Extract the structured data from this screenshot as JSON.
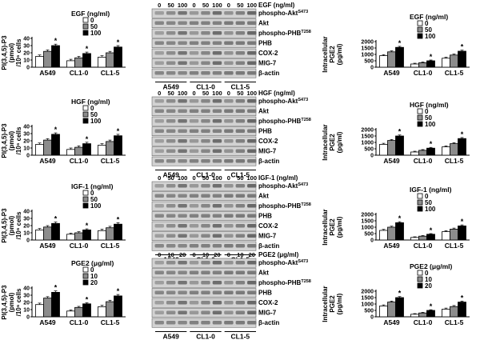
{
  "panels": [
    {
      "treatment": "EGF",
      "blot_header": "EGF (ng/ml)",
      "doses": [
        "0",
        "50",
        "100"
      ],
      "blot_labels": [
        "phospho-Akt",
        "Akt",
        "phospho-PHB",
        "PHB",
        "COX-2",
        "MIG-7",
        "β-actin"
      ],
      "blot_superscripts": [
        "S473",
        "",
        "T258",
        "",
        "",
        "",
        ""
      ],
      "cell_lines": [
        "A549",
        "CL1-0",
        "CL1-5"
      ]
    },
    {
      "treatment": "HGF",
      "blot_header": "HGF (ng/ml)",
      "doses": [
        "0",
        "50",
        "100"
      ],
      "blot_labels": [
        "phospho-Akt",
        "Akt",
        "phospho-PHB",
        "PHB",
        "COX-2",
        "MIG-7",
        "β-actin"
      ],
      "blot_superscripts": [
        "S473",
        "",
        "T258",
        "",
        "",
        "",
        ""
      ],
      "cell_lines": [
        "A549",
        "CL1-0",
        "CL1-5"
      ]
    },
    {
      "treatment": "IGF-1",
      "blot_header": "IGF-1 (ng/ml)",
      "doses": [
        "0",
        "50",
        "100"
      ],
      "blot_labels": [
        "phospho-Akt",
        "Akt",
        "phospho-PHB",
        "PHB",
        "COX-2",
        "MIG-7",
        "β-actin"
      ],
      "blot_superscripts": [
        "S473",
        "",
        "T258",
        "",
        "",
        "",
        ""
      ],
      "cell_lines": [
        "A549",
        "CL1-0",
        "CL1-5"
      ]
    },
    {
      "treatment": "PGE2",
      "blot_header": "PGE2 (μg/ml)",
      "doses": [
        "0",
        "10",
        "20"
      ],
      "blot_labels": [
        "phospho-Akt",
        "Akt",
        "phospho-PHB",
        "PHB",
        "COX-2",
        "MIG-7",
        "β-actin"
      ],
      "blot_superscripts": [
        "S473",
        "",
        "T258",
        "",
        "",
        "",
        ""
      ],
      "cell_lines": [
        "A549",
        "CL1-0",
        "CL1-5"
      ]
    }
  ],
  "chart_data": [
    {
      "type": "bar",
      "panel": "EGF",
      "side": "left",
      "ylabel_lines": [
        "PI(3,4,5)-P3",
        "(pmol)",
        "/10⁶ cells"
      ],
      "legend_title": "EGF (ng/ml)",
      "categories": [
        "A549",
        "CL1-0",
        "CL1-5"
      ],
      "series": [
        {
          "name": "0",
          "values": [
            15,
            9,
            14
          ],
          "fill": "#ffffff"
        },
        {
          "name": "50",
          "values": [
            22,
            13,
            20
          ],
          "fill": "#8c8c8c"
        },
        {
          "name": "100",
          "values": [
            30,
            19,
            28
          ],
          "fill": "#000000"
        }
      ],
      "ylim": [
        0,
        40
      ],
      "yticks": [
        0,
        10,
        20,
        30,
        40
      ],
      "errors": [
        2,
        2,
        2
      ],
      "significance": [
        [
          false,
          false,
          true
        ],
        [
          false,
          false,
          true
        ],
        [
          false,
          false,
          true
        ]
      ]
    },
    {
      "type": "bar",
      "panel": "EGF",
      "side": "right",
      "ylabel_lines": [
        "Intracellular",
        "PGE2",
        "(pg/ml)"
      ],
      "legend_title": "EGF (ng/ml)",
      "categories": [
        "A549",
        "CL1-0",
        "CL1-5"
      ],
      "series": [
        {
          "name": "0",
          "values": [
            900,
            250,
            700
          ],
          "fill": "#ffffff"
        },
        {
          "name": "50",
          "values": [
            1200,
            350,
            950
          ],
          "fill": "#8c8c8c"
        },
        {
          "name": "100",
          "values": [
            1550,
            500,
            1250
          ],
          "fill": "#000000"
        }
      ],
      "ylim": [
        0,
        2000
      ],
      "yticks": [
        0,
        500,
        1000,
        1500,
        2000
      ],
      "errors": [
        80,
        60,
        80
      ],
      "significance": [
        [
          false,
          false,
          true
        ],
        [
          false,
          false,
          true
        ],
        [
          false,
          false,
          true
        ]
      ]
    },
    {
      "type": "bar",
      "panel": "HGF",
      "side": "left",
      "ylabel_lines": [
        "PI(3,4,5)-P3",
        "(pmol)",
        "/10⁶ cells"
      ],
      "legend_title": "HGF (ng/ml)",
      "categories": [
        "A549",
        "CL1-0",
        "CL1-5"
      ],
      "series": [
        {
          "name": "0",
          "values": [
            15,
            8,
            14
          ],
          "fill": "#ffffff"
        },
        {
          "name": "50",
          "values": [
            21,
            11,
            19
          ],
          "fill": "#8c8c8c"
        },
        {
          "name": "100",
          "values": [
            29,
            16,
            27
          ],
          "fill": "#000000"
        }
      ],
      "ylim": [
        0,
        40
      ],
      "yticks": [
        0,
        10,
        20,
        30,
        40
      ],
      "errors": [
        2,
        2,
        2
      ],
      "significance": [
        [
          false,
          false,
          true
        ],
        [
          false,
          false,
          true
        ],
        [
          false,
          false,
          true
        ]
      ]
    },
    {
      "type": "bar",
      "panel": "HGF",
      "side": "right",
      "ylabel_lines": [
        "Intracellular",
        "PGE2",
        "(pg/ml)"
      ],
      "legend_title": "HGF (ng/ml)",
      "categories": [
        "A549",
        "CL1-0",
        "CL1-5"
      ],
      "series": [
        {
          "name": "0",
          "values": [
            850,
            250,
            650
          ],
          "fill": "#ffffff"
        },
        {
          "name": "50",
          "values": [
            1150,
            380,
            900
          ],
          "fill": "#8c8c8c"
        },
        {
          "name": "100",
          "values": [
            1500,
            550,
            1300
          ],
          "fill": "#000000"
        }
      ],
      "ylim": [
        0,
        2000
      ],
      "yticks": [
        0,
        500,
        1000,
        1500,
        2000
      ],
      "errors": [
        80,
        60,
        80
      ],
      "significance": [
        [
          false,
          false,
          true
        ],
        [
          false,
          false,
          true
        ],
        [
          false,
          false,
          true
        ]
      ]
    },
    {
      "type": "bar",
      "panel": "IGF-1",
      "side": "left",
      "ylabel_lines": [
        "PI(3,4,5)-P3",
        "(pmol)",
        "/10⁶ cells"
      ],
      "legend_title": "IGF-1 (ng/ml)",
      "categories": [
        "A549",
        "CL1-0",
        "CL1-5"
      ],
      "series": [
        {
          "name": "0",
          "values": [
            14,
            8,
            13
          ],
          "fill": "#ffffff"
        },
        {
          "name": "50",
          "values": [
            18,
            10,
            17
          ],
          "fill": "#8c8c8c"
        },
        {
          "name": "100",
          "values": [
            23,
            14,
            22
          ],
          "fill": "#000000"
        }
      ],
      "ylim": [
        0,
        40
      ],
      "yticks": [
        0,
        10,
        20,
        30,
        40
      ],
      "errors": [
        2,
        1.5,
        2
      ],
      "significance": [
        [
          false,
          false,
          true
        ],
        [
          false,
          false,
          true
        ],
        [
          false,
          false,
          true
        ]
      ]
    },
    {
      "type": "bar",
      "panel": "IGF-1",
      "side": "right",
      "ylabel_lines": [
        "Intracellular",
        "PGE2",
        "(pg/ml)"
      ],
      "legend_title": "IGF-1 (ng/ml)",
      "categories": [
        "A549",
        "CL1-0",
        "CL1-5"
      ],
      "series": [
        {
          "name": "0",
          "values": [
            750,
            200,
            650
          ],
          "fill": "#ffffff"
        },
        {
          "name": "50",
          "values": [
            1000,
            300,
            850
          ],
          "fill": "#8c8c8c"
        },
        {
          "name": "100",
          "values": [
            1350,
            450,
            1100
          ],
          "fill": "#000000"
        }
      ],
      "ylim": [
        0,
        2000
      ],
      "yticks": [
        0,
        500,
        1000,
        1500,
        2000
      ],
      "errors": [
        80,
        50,
        80
      ],
      "significance": [
        [
          false,
          false,
          true
        ],
        [
          false,
          false,
          true
        ],
        [
          false,
          false,
          true
        ]
      ]
    },
    {
      "type": "bar",
      "panel": "PGE2",
      "side": "left",
      "ylabel_lines": [
        "PI(3,4,5)-P3",
        "(pmol)",
        "/10⁶ cells"
      ],
      "legend_title": "PGE2 (μg/ml)",
      "categories": [
        "A549",
        "CL1-0",
        "CL1-5"
      ],
      "series": [
        {
          "name": "0",
          "values": [
            17,
            8,
            14
          ],
          "fill": "#ffffff"
        },
        {
          "name": "10",
          "values": [
            26,
            13,
            21
          ],
          "fill": "#8c8c8c"
        },
        {
          "name": "20",
          "values": [
            34,
            18,
            29
          ],
          "fill": "#000000"
        }
      ],
      "ylim": [
        0,
        40
      ],
      "yticks": [
        0,
        10,
        20,
        30,
        40
      ],
      "errors": [
        2,
        1.5,
        2
      ],
      "significance": [
        [
          false,
          false,
          true
        ],
        [
          false,
          false,
          true
        ],
        [
          false,
          false,
          true
        ]
      ]
    },
    {
      "type": "bar",
      "panel": "PGE2",
      "side": "right",
      "ylabel_lines": [
        "Intracellular",
        "PGE2",
        "(pg/ml)"
      ],
      "legend_title": "PGE2 (μg/ml)",
      "categories": [
        "A549",
        "CL1-0",
        "CL1-5"
      ],
      "series": [
        {
          "name": "0",
          "values": [
            850,
            200,
            600
          ],
          "fill": "#ffffff"
        },
        {
          "name": "10",
          "values": [
            1150,
            300,
            800
          ],
          "fill": "#8c8c8c"
        },
        {
          "name": "20",
          "values": [
            1500,
            500,
            1150
          ],
          "fill": "#000000"
        }
      ],
      "ylim": [
        0,
        2000
      ],
      "yticks": [
        0,
        500,
        1000,
        1500,
        2000
      ],
      "errors": [
        80,
        50,
        80
      ],
      "significance": [
        [
          false,
          false,
          true
        ],
        [
          false,
          false,
          true
        ],
        [
          false,
          false,
          true
        ]
      ]
    }
  ]
}
